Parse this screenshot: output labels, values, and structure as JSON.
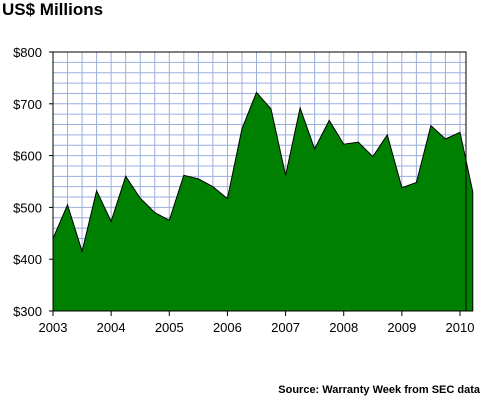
{
  "chart_data": {
    "type": "area",
    "title": "US$ Millions",
    "source": "Source: Warranty Week from SEC data",
    "xlabel": "",
    "ylabel": "",
    "ylim": [
      300,
      800
    ],
    "y_ticks": [
      "$300",
      "$400",
      "$500",
      "$600",
      "$700",
      "$800"
    ],
    "y_tick_values": [
      300,
      400,
      500,
      600,
      700,
      800
    ],
    "x_ticks": [
      "2003",
      "2004",
      "2005",
      "2006",
      "2007",
      "2008",
      "2009",
      "2010"
    ],
    "x_tick_values": [
      2003,
      2004,
      2005,
      2006,
      2007,
      2008,
      2009,
      2010
    ],
    "xlim": [
      2003.0,
      2010.22
    ],
    "grid": true,
    "colors": {
      "fill": "#008000",
      "stroke": "#000000",
      "grid": "#9aaedd",
      "frame": "#000000"
    },
    "series": [
      {
        "x": [
          2003.0,
          2003.25,
          2003.5,
          2003.75,
          2004.0,
          2004.25,
          2004.5,
          2004.75,
          2005.0,
          2005.25,
          2005.5,
          2005.75,
          2006.0,
          2006.25,
          2006.5,
          2006.75,
          2007.0,
          2007.25,
          2007.5,
          2007.75,
          2008.0,
          2008.25,
          2008.5,
          2008.75,
          2009.0,
          2009.25,
          2009.5,
          2009.75,
          2010.0,
          2010.22
        ],
        "values": [
          440,
          505,
          415,
          532,
          473,
          560,
          518,
          490,
          475,
          562,
          555,
          540,
          517,
          652,
          722,
          690,
          562,
          692,
          613,
          668,
          622,
          626,
          598,
          640,
          538,
          548,
          658,
          632,
          645,
          530
        ]
      }
    ]
  }
}
